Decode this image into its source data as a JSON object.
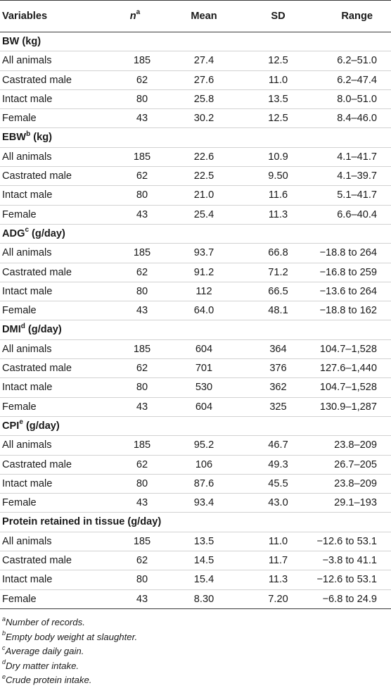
{
  "header": {
    "variables": "Variables",
    "n": "n",
    "n_sup": "a",
    "mean": "Mean",
    "sd": "SD",
    "range": "Range"
  },
  "groups": [
    {
      "label": "BW (kg)",
      "sup": "",
      "unit": "",
      "rows": [
        {
          "label": "All animals",
          "n": "185",
          "mean": "27.4",
          "sd": "12.5",
          "range": "6.2–51.0"
        },
        {
          "label": "Castrated male",
          "n": "62",
          "mean": "27.6",
          "sd": "11.0",
          "range": "6.2–47.4"
        },
        {
          "label": "Intact male",
          "n": "80",
          "mean": "25.8",
          "sd": "13.5",
          "range": "8.0–51.0"
        },
        {
          "label": "Female",
          "n": "43",
          "mean": "30.2",
          "sd": "12.5",
          "range": "8.4–46.0"
        }
      ]
    },
    {
      "label": "EBW",
      "sup": "b",
      "unit": " (kg)",
      "rows": [
        {
          "label": "All animals",
          "n": "185",
          "mean": "22.6",
          "sd": "10.9",
          "range": "4.1–41.7"
        },
        {
          "label": "Castrated male",
          "n": "62",
          "mean": "22.5",
          "sd": "9.50",
          "range": "4.1–39.7"
        },
        {
          "label": "Intact male",
          "n": "80",
          "mean": "21.0",
          "sd": "11.6",
          "range": "5.1–41.7"
        },
        {
          "label": "Female",
          "n": "43",
          "mean": "25.4",
          "sd": "11.3",
          "range": "6.6–40.4"
        }
      ]
    },
    {
      "label": "ADG",
      "sup": "c",
      "unit": " (g/day)",
      "rows": [
        {
          "label": "All animals",
          "n": "185",
          "mean": "93.7",
          "sd": "66.8",
          "range": "−18.8 to 264"
        },
        {
          "label": "Castrated male",
          "n": "62",
          "mean": "91.2",
          "sd": "71.2",
          "range": "−16.8 to 259"
        },
        {
          "label": "Intact male",
          "n": "80",
          "mean": "112",
          "sd": "66.5",
          "range": "−13.6 to 264"
        },
        {
          "label": "Female",
          "n": "43",
          "mean": "64.0",
          "sd": "48.1",
          "range": "−18.8 to 162"
        }
      ]
    },
    {
      "label": "DMI",
      "sup": "d",
      "unit": " (g/day)",
      "rows": [
        {
          "label": "All animals",
          "n": "185",
          "mean": "604",
          "sd": "364",
          "range": "104.7–1,528"
        },
        {
          "label": "Castrated male",
          "n": "62",
          "mean": "701",
          "sd": "376",
          "range": "127.6–1,440"
        },
        {
          "label": "Intact male",
          "n": "80",
          "mean": "530",
          "sd": "362",
          "range": "104.7–1,528"
        },
        {
          "label": "Female",
          "n": "43",
          "mean": "604",
          "sd": "325",
          "range": "130.9–1,287"
        }
      ]
    },
    {
      "label": "CPI",
      "sup": "e",
      "unit": " (g/day)",
      "rows": [
        {
          "label": "All animals",
          "n": "185",
          "mean": "95.2",
          "sd": "46.7",
          "range": "23.8–209"
        },
        {
          "label": "Castrated male",
          "n": "62",
          "mean": "106",
          "sd": "49.3",
          "range": "26.7–205"
        },
        {
          "label": "Intact male",
          "n": "80",
          "mean": "87.6",
          "sd": "45.5",
          "range": "23.8–209"
        },
        {
          "label": "Female",
          "n": "43",
          "mean": "93.4",
          "sd": "43.0",
          "range": "29.1–193"
        }
      ]
    },
    {
      "label": "Protein retained in tissue (g/day)",
      "sup": "",
      "unit": "",
      "rows": [
        {
          "label": "All animals",
          "n": "185",
          "mean": "13.5",
          "sd": "11.0",
          "range": "−12.6 to 53.1"
        },
        {
          "label": "Castrated male",
          "n": "62",
          "mean": "14.5",
          "sd": "11.7",
          "range": "−3.8 to 41.1"
        },
        {
          "label": "Intact male",
          "n": "80",
          "mean": "15.4",
          "sd": "11.3",
          "range": "−12.6 to 53.1"
        },
        {
          "label": "Female",
          "n": "43",
          "mean": "8.30",
          "sd": "7.20",
          "range": "−6.8 to 24.9"
        }
      ]
    }
  ],
  "footnotes": [
    {
      "sup": "a",
      "text": "Number of records."
    },
    {
      "sup": "b",
      "text": "Empty body weight at slaughter."
    },
    {
      "sup": "c",
      "text": "Average daily gain."
    },
    {
      "sup": "d",
      "text": "Dry matter intake."
    },
    {
      "sup": "e",
      "text": "Crude protein intake."
    }
  ]
}
